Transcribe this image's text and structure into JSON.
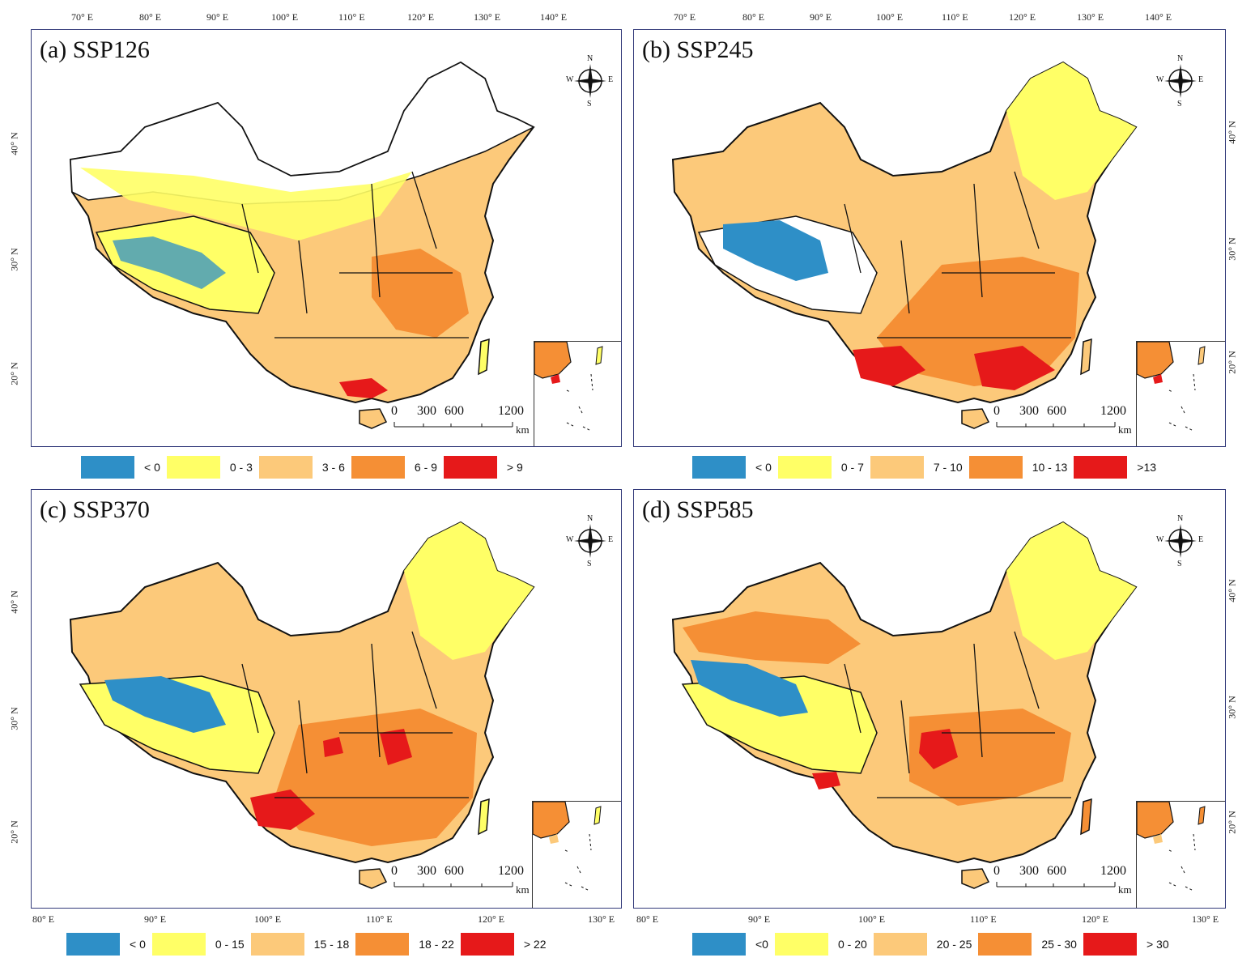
{
  "colors": {
    "neg": "#2e8fc7",
    "c1": "#ffff66",
    "c2": "#fcc97a",
    "c3": "#f58f35",
    "c4": "#e6191a",
    "border": "#111111",
    "frame": "#333a7a"
  },
  "compass": {
    "n": "N",
    "s": "S",
    "e": "E",
    "w": "W"
  },
  "scale_bar": {
    "labels": [
      "0",
      "300",
      "600",
      "1200"
    ],
    "unit": "km"
  },
  "panels": [
    {
      "title": "(a) SSP126",
      "top_ticks": [
        "70° E",
        "80° E",
        "90° E",
        "100° E",
        "110° E",
        "120° E",
        "130° E",
        "140° E"
      ],
      "left_ticks": [
        "40° N",
        "30° N",
        "20° N"
      ],
      "legend": [
        "< 0",
        "0 - 3",
        "3 - 6",
        "6 - 9",
        "> 9"
      ]
    },
    {
      "title": "(b) SSP245",
      "top_ticks": [
        "70° E",
        "80° E",
        "90° E",
        "100° E",
        "110° E",
        "120° E",
        "130° E",
        "140° E"
      ],
      "right_ticks": [
        "40° N",
        "30° N",
        "20° N"
      ],
      "legend": [
        "< 0",
        "0 - 7",
        "7 - 10",
        "10 - 13",
        ">13"
      ]
    },
    {
      "title": "(c) SSP370",
      "bottom_ticks": [
        "80° E",
        "90° E",
        "100° E",
        "110° E",
        "120° E",
        "130° E"
      ],
      "left_ticks": [
        "40° N",
        "30° N",
        "20° N"
      ],
      "legend": [
        "< 0",
        "0 - 15",
        "15 - 18",
        "18 - 22",
        "> 22"
      ]
    },
    {
      "title": "(d) SSP585",
      "bottom_ticks": [
        "80° E",
        "90° E",
        "100° E",
        "110° E",
        "120° E",
        "130° E"
      ],
      "right_ticks": [
        "40° N",
        "30° N",
        "20° N"
      ],
      "legend": [
        "<0",
        "0 - 20",
        "20 - 25",
        "25 - 30",
        "> 30"
      ]
    }
  ]
}
